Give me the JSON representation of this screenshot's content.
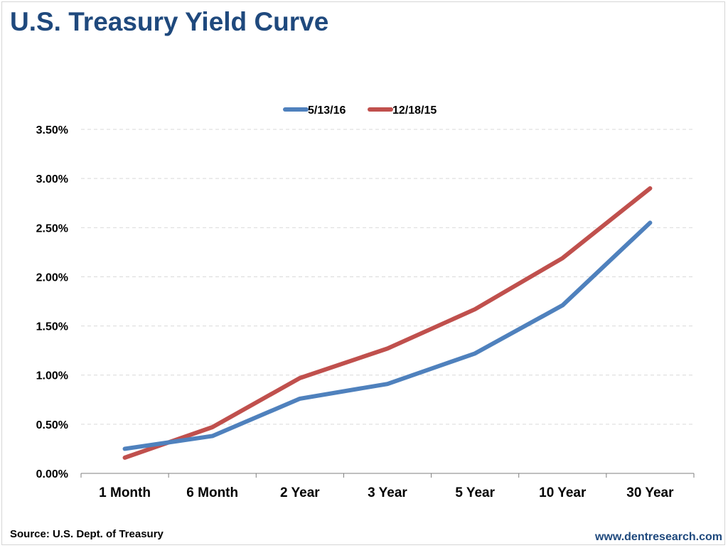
{
  "title": "U.S. Treasury Yield Curve",
  "source": "Source: U.S. Dept. of Treasury",
  "website": "www.dentresearch.com",
  "chart_data": {
    "type": "line",
    "categories": [
      "1 Month",
      "6 Month",
      "2 Year",
      "3 Year",
      "5 Year",
      "10 Year",
      "30 Year"
    ],
    "series": [
      {
        "name": "5/13/16",
        "color": "#4f81bd",
        "values": [
          0.25,
          0.38,
          0.76,
          0.91,
          1.22,
          1.71,
          2.55
        ]
      },
      {
        "name": "12/18/15",
        "color": "#c0504d",
        "values": [
          0.16,
          0.47,
          0.97,
          1.27,
          1.67,
          2.19,
          2.9
        ]
      }
    ],
    "y_ticks": [
      "0.00%",
      "0.50%",
      "1.00%",
      "1.50%",
      "2.00%",
      "2.50%",
      "3.00%",
      "3.50%"
    ],
    "ylim": [
      0,
      3.5
    ],
    "grid": true,
    "legend": "top-center"
  }
}
